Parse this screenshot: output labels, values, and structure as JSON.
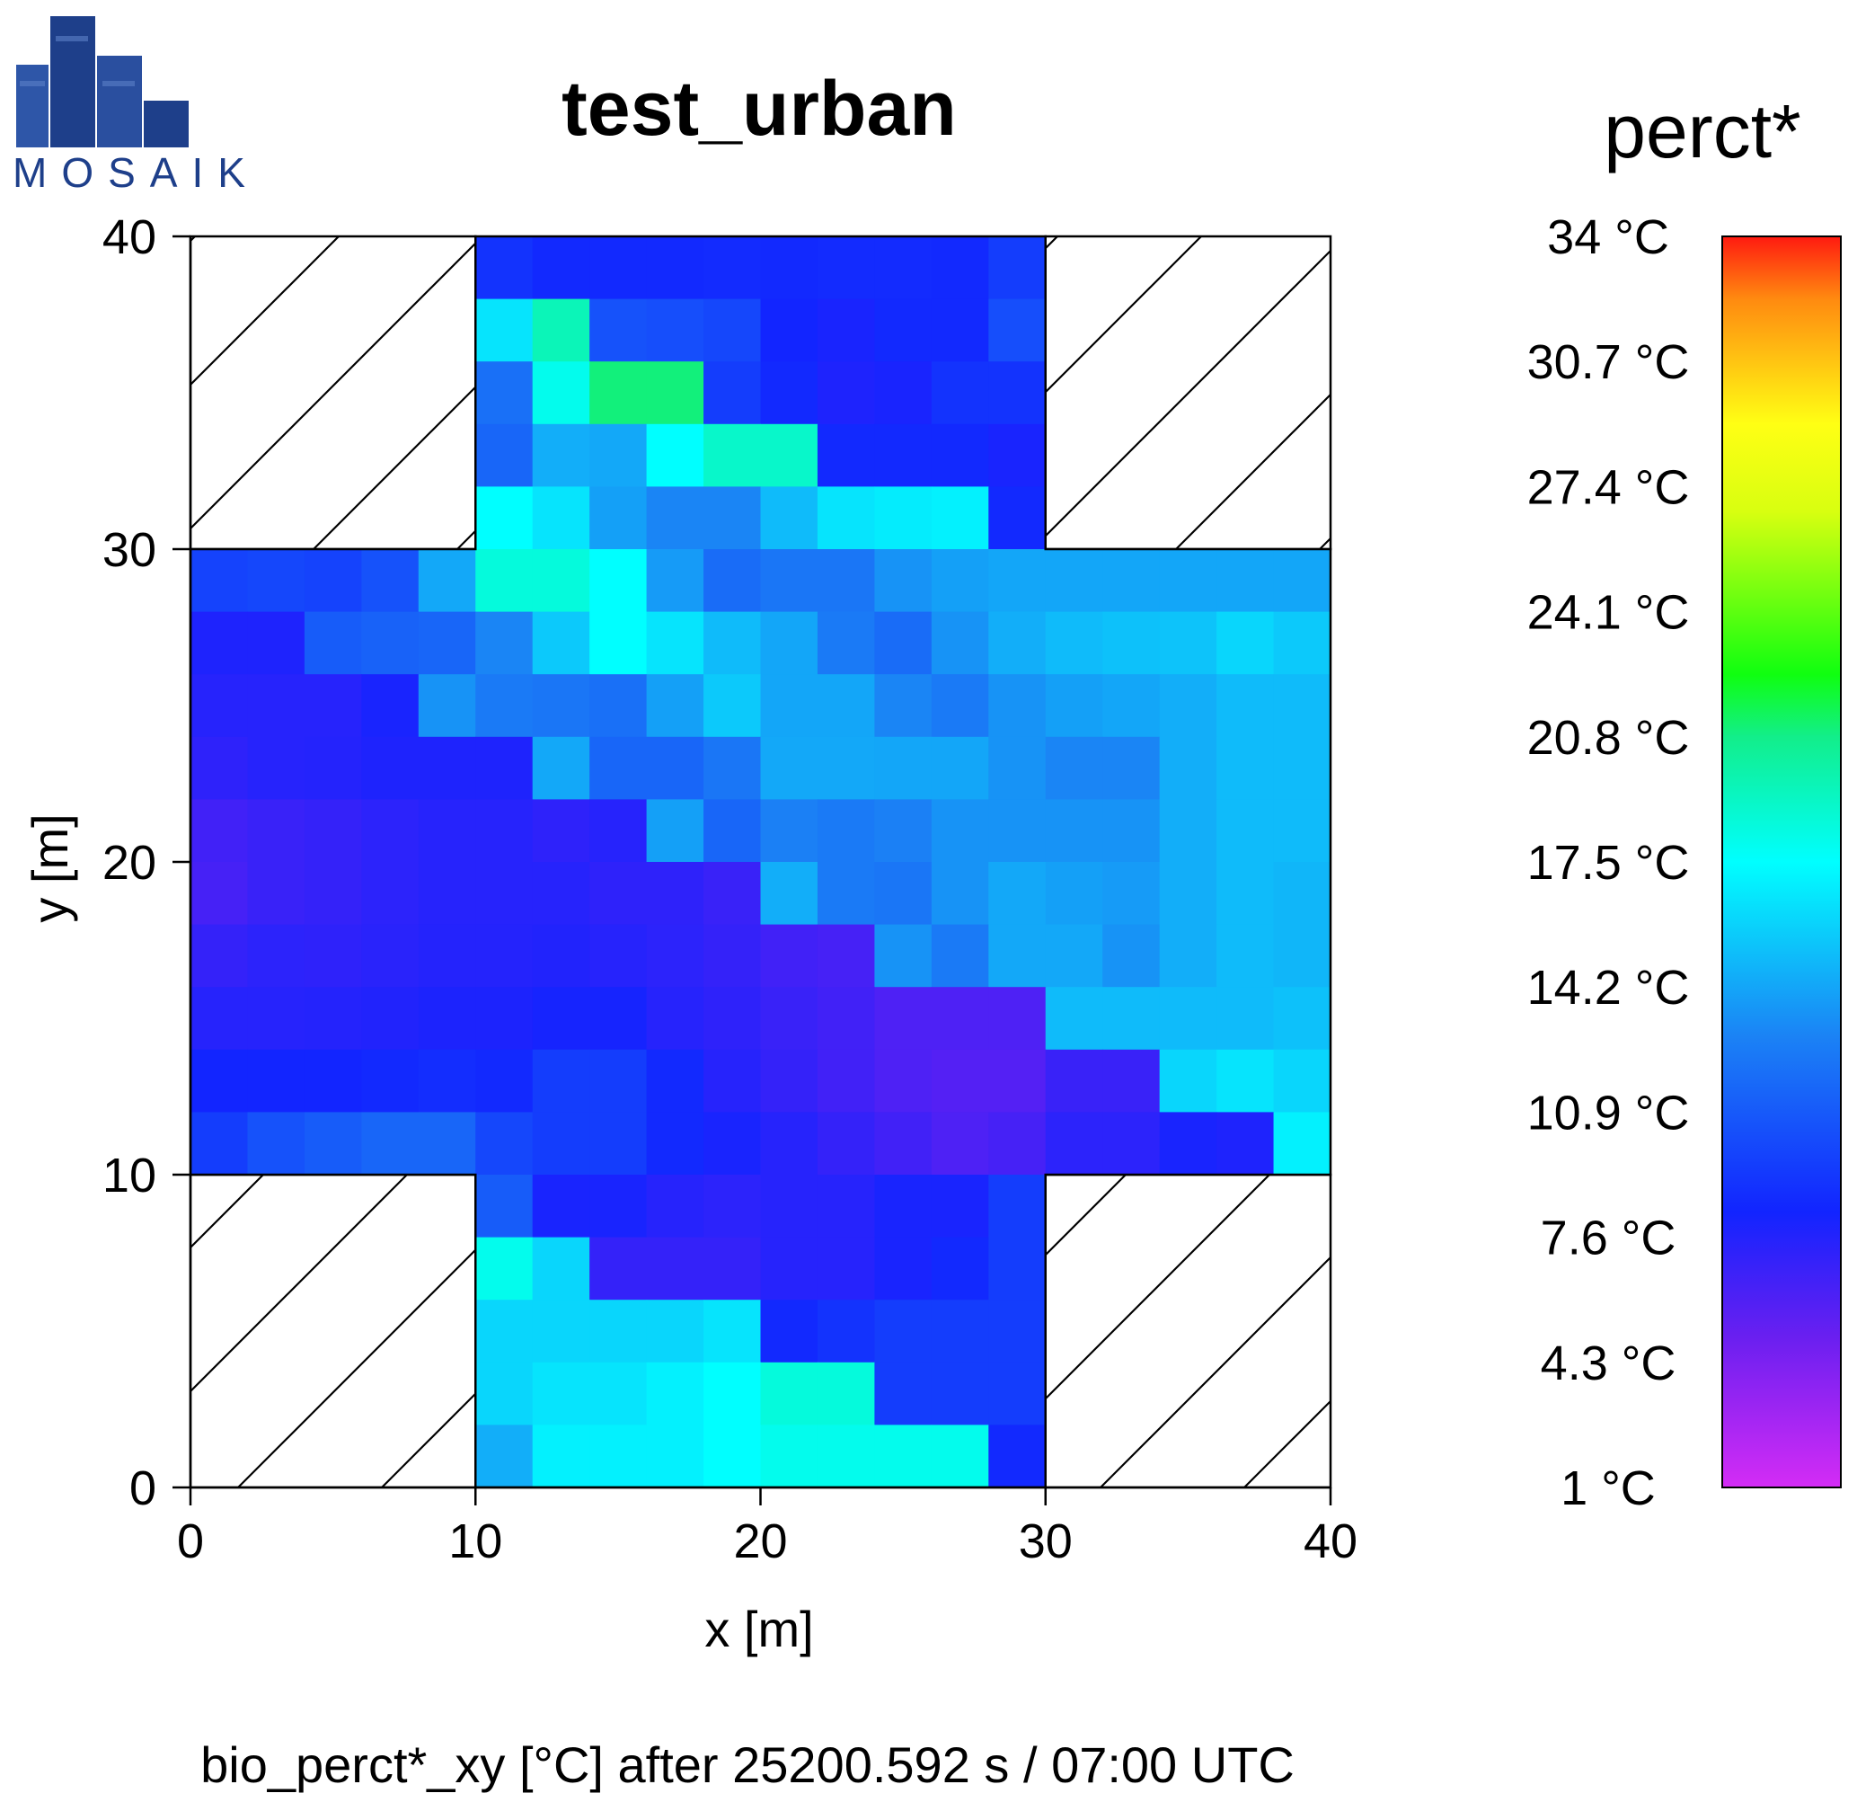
{
  "logo": {
    "text": "MOSAIK"
  },
  "chart_data": {
    "type": "heatmap",
    "title": "test_urban",
    "colorbar_title": "perct*",
    "xlabel": "x [m]",
    "ylabel": "y [m]",
    "caption": "bio_perct*_xy [°C] after 25200.592 s / 07:00 UTC",
    "xlim": [
      0,
      40
    ],
    "ylim": [
      0,
      40
    ],
    "x_ticks": [
      "0",
      "10",
      "20",
      "30",
      "40"
    ],
    "y_ticks": [
      "0",
      "10",
      "20",
      "30",
      "40"
    ],
    "cell_size": 2,
    "buildings_hatched": [
      [
        0,
        30,
        10,
        40
      ],
      [
        30,
        30,
        40,
        40
      ],
      [
        0,
        0,
        10,
        10
      ],
      [
        30,
        0,
        40,
        10
      ]
    ],
    "colorbar": {
      "min": 1,
      "max": 34,
      "tick_values": [
        1,
        4.3,
        7.6,
        10.9,
        14.2,
        17.5,
        20.8,
        24.1,
        27.4,
        30.7,
        34
      ],
      "tick_labels": [
        "1 °C",
        "4.3 °C",
        "7.6 °C",
        "10.9 °C",
        "14.2 °C",
        "17.5 °C",
        "20.8 °C",
        "24.1 °C",
        "27.4 °C",
        "30.7 °C",
        "34 °C"
      ]
    },
    "grid_rows_top_to_bottom": [
      [
        null,
        null,
        null,
        null,
        null,
        9.0,
        8.5,
        8.5,
        8.5,
        8.6,
        8.5,
        8.6,
        8.6,
        8.5,
        9.5,
        null,
        null,
        null,
        null,
        null
      ],
      [
        null,
        null,
        null,
        null,
        null,
        16.5,
        19.5,
        10.5,
        10.3,
        10.0,
        8.3,
        8.0,
        8.5,
        8.5,
        10.3,
        null,
        null,
        null,
        null,
        null
      ],
      [
        null,
        null,
        null,
        null,
        null,
        12.0,
        18.0,
        21.0,
        21.0,
        9.5,
        8.5,
        7.8,
        8.0,
        9.0,
        9.0,
        null,
        null,
        null,
        null,
        null
      ],
      [
        null,
        null,
        null,
        null,
        null,
        11.5,
        14.5,
        14.3,
        17.5,
        19.0,
        19.0,
        8.5,
        8.5,
        8.5,
        8.0,
        null,
        null,
        null,
        null,
        null
      ],
      [
        null,
        null,
        null,
        null,
        null,
        17.5,
        16.5,
        14.0,
        13.0,
        13.0,
        15.0,
        16.5,
        16.8,
        17.0,
        8.5,
        null,
        null,
        null,
        null,
        null
      ],
      [
        9.8,
        10.0,
        9.8,
        10.5,
        14.3,
        18.5,
        18.5,
        17.5,
        13.8,
        11.8,
        12.3,
        12.3,
        13.5,
        14.0,
        14.2,
        14.2,
        14.2,
        14.2,
        14.2,
        14.2
      ],
      [
        7.8,
        7.8,
        11.0,
        11.3,
        11.5,
        13.0,
        15.5,
        17.5,
        16.5,
        15.0,
        14.2,
        12.5,
        11.8,
        13.5,
        14.5,
        15.0,
        15.2,
        15.3,
        16.0,
        15.5
      ],
      [
        7.5,
        7.5,
        7.5,
        8.0,
        13.5,
        12.5,
        12.3,
        12.0,
        14.0,
        15.5,
        14.2,
        14.2,
        13.0,
        12.5,
        13.5,
        14.0,
        14.2,
        14.5,
        15.0,
        15.0
      ],
      [
        7.2,
        7.5,
        7.6,
        7.8,
        7.8,
        7.8,
        14.3,
        11.5,
        11.5,
        12.3,
        14.3,
        14.3,
        14.2,
        14.2,
        13.5,
        13.0,
        13.0,
        14.5,
        15.0,
        15.0
      ],
      [
        6.5,
        6.8,
        7.0,
        7.3,
        7.5,
        7.5,
        7.2,
        7.5,
        14.0,
        11.5,
        12.8,
        12.5,
        12.8,
        13.5,
        13.5,
        13.5,
        13.5,
        14.5,
        15.0,
        15.0
      ],
      [
        6.3,
        6.8,
        7.0,
        7.3,
        7.5,
        7.5,
        7.5,
        7.2,
        7.2,
        6.8,
        14.5,
        12.5,
        12.3,
        13.5,
        14.3,
        14.0,
        13.8,
        14.5,
        15.0,
        14.8
      ],
      [
        7.0,
        7.3,
        7.2,
        7.4,
        7.6,
        7.6,
        7.7,
        7.5,
        7.3,
        7.0,
        6.5,
        6.3,
        13.5,
        12.5,
        14.3,
        14.3,
        13.5,
        14.5,
        15.0,
        14.8
      ],
      [
        7.5,
        7.5,
        7.6,
        7.7,
        7.9,
        7.9,
        8.1,
        8.1,
        7.5,
        7.2,
        6.8,
        6.5,
        6.0,
        6.0,
        6.0,
        15.0,
        15.0,
        15.0,
        15.0,
        15.2
      ],
      [
        8.3,
        8.3,
        8.3,
        8.5,
        8.7,
        8.5,
        9.5,
        9.5,
        8.5,
        7.5,
        7.0,
        6.5,
        6.0,
        5.8,
        5.8,
        6.8,
        6.8,
        16.0,
        16.5,
        16.0
      ],
      [
        9.5,
        10.5,
        11.0,
        11.5,
        11.5,
        10.0,
        9.5,
        9.5,
        8.5,
        8.0,
        7.5,
        7.0,
        6.5,
        6.0,
        6.3,
        7.3,
        7.3,
        8.0,
        7.8,
        17.0
      ],
      [
        null,
        null,
        null,
        null,
        null,
        11.0,
        8.0,
        8.0,
        7.5,
        7.3,
        7.5,
        7.5,
        8.0,
        8.0,
        9.5,
        null,
        null,
        null,
        null,
        null
      ],
      [
        null,
        null,
        null,
        null,
        null,
        18.0,
        16.0,
        7.0,
        7.0,
        7.0,
        7.5,
        7.5,
        8.0,
        8.5,
        9.5,
        null,
        null,
        null,
        null,
        null
      ],
      [
        null,
        null,
        null,
        null,
        null,
        16.0,
        16.0,
        16.0,
        16.0,
        16.5,
        8.5,
        9.0,
        9.5,
        9.5,
        9.5,
        null,
        null,
        null,
        null,
        null
      ],
      [
        null,
        null,
        null,
        null,
        null,
        16.0,
        16.5,
        16.5,
        17.0,
        17.5,
        18.5,
        18.5,
        9.5,
        9.5,
        9.5,
        null,
        null,
        null,
        null,
        null
      ],
      [
        null,
        null,
        null,
        null,
        null,
        14.5,
        17.0,
        17.0,
        17.0,
        17.5,
        18.0,
        18.0,
        18.0,
        18.0,
        8.5,
        null,
        null,
        null,
        null,
        null
      ]
    ]
  }
}
